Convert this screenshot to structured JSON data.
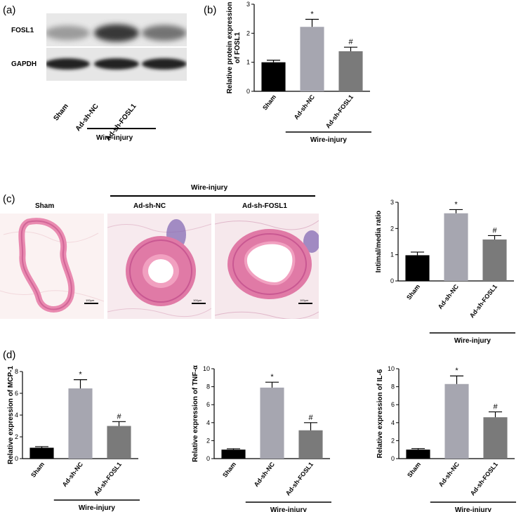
{
  "panels": {
    "a": "(a)",
    "b": "(b)",
    "c": "(c)",
    "d": "(d)"
  },
  "blot": {
    "row1": "FOSL1",
    "row2": "GAPDH",
    "lanes": [
      "Sham",
      "Ad-sh-NC",
      "Ad-sh-FOSL1"
    ],
    "group": "Wire-injury",
    "fosl1_intensity": [
      0.35,
      0.85,
      0.55
    ],
    "gapdh_intensity": [
      0.9,
      0.9,
      0.9
    ]
  },
  "histology": {
    "group": "Wire-injury",
    "titles": [
      "Sham",
      "Ad-sh-NC",
      "Ad-sh-FOSL1"
    ],
    "scale": "100μm"
  },
  "chart_data": [
    {
      "type": "bar",
      "panel": "b",
      "categories": [
        "Sham",
        "Ad-sh-NC",
        "Ad-sh-FOSL1"
      ],
      "values": [
        1.0,
        2.22,
        1.38
      ],
      "errors": [
        0.07,
        0.26,
        0.14
      ],
      "annotations": [
        "",
        "*",
        "#"
      ],
      "colors": [
        "#000000",
        "#a6a6b0",
        "#7a7a7a"
      ],
      "ylabel": "Relative protein expression\nof FOSL1",
      "ylim": [
        0,
        3
      ],
      "yticks": [
        0,
        1,
        2,
        3
      ],
      "group_label": "Wire-injury"
    },
    {
      "type": "bar",
      "panel": "c",
      "categories": [
        "Sham",
        "Ad-sh-NC",
        "Ad-sh-FOSL1"
      ],
      "values": [
        0.98,
        2.58,
        1.58
      ],
      "errors": [
        0.12,
        0.14,
        0.15
      ],
      "annotations": [
        "",
        "*",
        "#"
      ],
      "colors": [
        "#000000",
        "#a6a6b0",
        "#7a7a7a"
      ],
      "ylabel": "Intimal/media ratio",
      "ylim": [
        0,
        3
      ],
      "yticks": [
        0,
        1,
        2,
        3
      ],
      "group_label": "Wire-injury"
    },
    {
      "type": "bar",
      "panel": "d1",
      "categories": [
        "Sham",
        "Ad-sh-NC",
        "Ad-sh-FOSL1"
      ],
      "values": [
        1.0,
        6.45,
        3.0
      ],
      "errors": [
        0.1,
        0.8,
        0.4
      ],
      "annotations": [
        "",
        "*",
        "#"
      ],
      "colors": [
        "#000000",
        "#a6a6b0",
        "#7a7a7a"
      ],
      "ylabel": "Relative expression of MCP-1",
      "ylim": [
        0,
        8
      ],
      "yticks": [
        0,
        2,
        4,
        6,
        8
      ],
      "group_label": "Wire-injury"
    },
    {
      "type": "bar",
      "panel": "d2",
      "categories": [
        "Sham",
        "Ad-sh-NC",
        "Ad-sh-FOSL1"
      ],
      "values": [
        1.0,
        7.9,
        3.15
      ],
      "errors": [
        0.1,
        0.6,
        0.85
      ],
      "annotations": [
        "",
        "*",
        "#"
      ],
      "colors": [
        "#000000",
        "#a6a6b0",
        "#7a7a7a"
      ],
      "ylabel": "Relative expression of TNF-α",
      "ylim": [
        0,
        10
      ],
      "yticks": [
        0,
        2,
        4,
        6,
        8,
        10
      ],
      "group_label": "Wire-injury"
    },
    {
      "type": "bar",
      "panel": "d3",
      "categories": [
        "Sham",
        "Ad-sh-NC",
        "Ad-sh-FOSL1"
      ],
      "values": [
        1.0,
        8.3,
        4.6
      ],
      "errors": [
        0.12,
        0.9,
        0.6
      ],
      "annotations": [
        "",
        "*",
        "#"
      ],
      "colors": [
        "#000000",
        "#a6a6b0",
        "#7a7a7a"
      ],
      "ylabel": "Relative expression of IL-6",
      "ylim": [
        0,
        10
      ],
      "yticks": [
        0,
        2,
        4,
        6,
        8,
        10
      ],
      "group_label": "Wire-injury"
    }
  ]
}
